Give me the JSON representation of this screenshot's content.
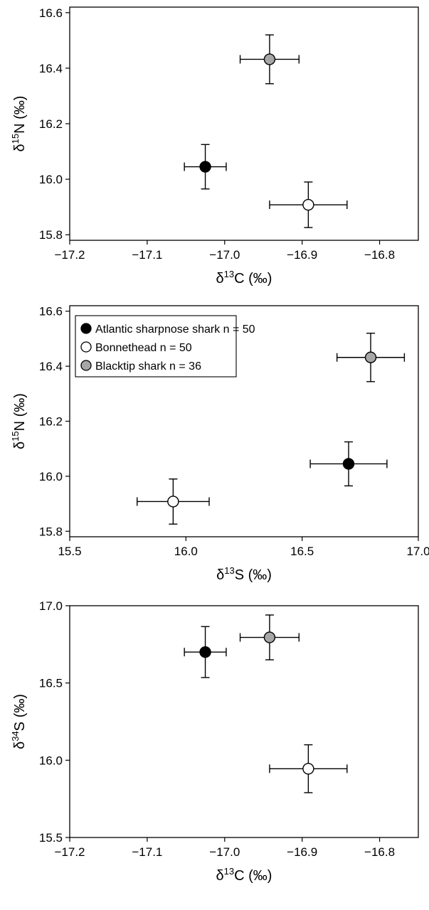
{
  "chart_data": [
    {
      "type": "scatter",
      "xlabel": {
        "pre": "δ",
        "sup": "13",
        "post": "C (‰)"
      },
      "ylabel": {
        "pre": "δ",
        "sup": "15",
        "post": "N (‰)"
      },
      "xlim": [
        -17.2,
        -16.75
      ],
      "ylim": [
        15.78,
        16.62
      ],
      "xticks": [
        -17.2,
        -17.1,
        -17.0,
        -16.9,
        -16.8
      ],
      "xtick_labels": [
        "−17.2",
        "−17.1",
        "−17.0",
        "−16.9",
        "−16.8"
      ],
      "yticks": [
        15.8,
        16.0,
        16.2,
        16.4,
        16.6
      ],
      "ytick_labels": [
        "15.8",
        "16.0",
        "16.2",
        "16.4",
        "16.6"
      ],
      "series": [
        {
          "key": "sharpnose",
          "x": -17.025,
          "y": 16.045,
          "xerr": 0.027,
          "yerr": 0.08
        },
        {
          "key": "bonnethead",
          "x": -16.892,
          "y": 15.908,
          "xerr": 0.05,
          "yerr": 0.082
        },
        {
          "key": "blacktip",
          "x": -16.942,
          "y": 16.432,
          "xerr": 0.038,
          "yerr": 0.088
        }
      ],
      "legend": null,
      "grid": false
    },
    {
      "type": "scatter",
      "xlabel": {
        "pre": "δ",
        "sup": "13",
        "post": "S (‰)"
      },
      "ylabel": {
        "pre": "δ",
        "sup": "15",
        "post": "N (‰)"
      },
      "xlim": [
        15.5,
        17.0
      ],
      "ylim": [
        15.78,
        16.62
      ],
      "xticks": [
        15.5,
        16.0,
        16.5,
        17.0
      ],
      "xtick_labels": [
        "15.5",
        "16.0",
        "16.5",
        "17.0"
      ],
      "yticks": [
        15.8,
        16.0,
        16.2,
        16.4,
        16.6
      ],
      "ytick_labels": [
        "15.8",
        "16.0",
        "16.2",
        "16.4",
        "16.6"
      ],
      "series": [
        {
          "key": "sharpnose",
          "x": 16.7,
          "y": 16.045,
          "xerr": 0.165,
          "yerr": 0.08
        },
        {
          "key": "bonnethead",
          "x": 15.945,
          "y": 15.908,
          "xerr": 0.155,
          "yerr": 0.082
        },
        {
          "key": "blacktip",
          "x": 16.795,
          "y": 16.432,
          "xerr": 0.145,
          "yerr": 0.088
        }
      ],
      "legend": "top-left",
      "grid": false
    },
    {
      "type": "scatter",
      "xlabel": {
        "pre": "δ",
        "sup": "13",
        "post": "C (‰)"
      },
      "ylabel": {
        "pre": "δ",
        "sup": "34",
        "post": "S (‰)"
      },
      "xlim": [
        -17.2,
        -16.75
      ],
      "ylim": [
        15.5,
        17.0
      ],
      "xticks": [
        -17.2,
        -17.1,
        -17.0,
        -16.9,
        -16.8
      ],
      "xtick_labels": [
        "−17.2",
        "−17.1",
        "−17.0",
        "−16.9",
        "−16.8"
      ],
      "yticks": [
        15.5,
        16.0,
        16.5,
        17.0
      ],
      "ytick_labels": [
        "15.5",
        "16.0",
        "16.5",
        "17.0"
      ],
      "series": [
        {
          "key": "sharpnose",
          "x": -17.025,
          "y": 16.7,
          "xerr": 0.027,
          "yerr": 0.165
        },
        {
          "key": "bonnethead",
          "x": -16.892,
          "y": 15.945,
          "xerr": 0.05,
          "yerr": 0.155
        },
        {
          "key": "blacktip",
          "x": -16.942,
          "y": 16.795,
          "xerr": 0.038,
          "yerr": 0.145
        }
      ],
      "legend": null,
      "grid": false
    }
  ],
  "species": {
    "sharpnose": {
      "label": "Atlantic sharpnose shark n = 50",
      "fill": "#000000"
    },
    "bonnethead": {
      "label": "Bonnethead n = 50",
      "fill": "#ffffff"
    },
    "blacktip": {
      "label": "Blacktip shark n = 36",
      "fill": "#a6a6a6"
    }
  },
  "colors": {
    "axis": "#000000",
    "marker_edge": "#000000",
    "background": "#ffffff"
  }
}
